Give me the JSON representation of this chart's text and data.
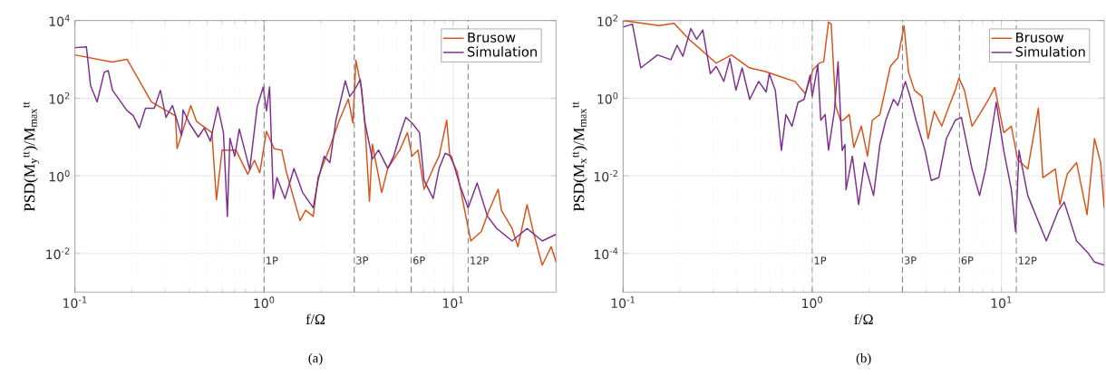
{
  "chart_data": [
    {
      "type": "line",
      "xlabel": "f/Ω",
      "ylabel": "PSD(M$_{y}$$^{tt}$)/M$_{max}$$^{tt}$",
      "annotations": [
        "(a)"
      ],
      "log": "xy",
      "grid": true,
      "legend": "top right",
      "xlim": [
        0.1,
        35
      ],
      "ylim": [
        0.001,
        10000
      ],
      "xticks": [
        {
          "value": 0.1,
          "label": "10$^{-1}$"
        },
        {
          "value": 1,
          "label": "10$^{0}$"
        },
        {
          "value": 10,
          "label": "10$^{1}$"
        }
      ],
      "yticks": [
        {
          "value": 0.01,
          "label": "10$^{-2}$"
        },
        {
          "value": 1,
          "label": "10$^{0}$"
        },
        {
          "value": 100,
          "label": "10$^{2}$"
        },
        {
          "value": 10000,
          "label": "10$^{4}$"
        }
      ],
      "ref_lines": [
        {
          "axis": "x",
          "value": 1,
          "label": "1P",
          "color": "#808080",
          "line_style": "dashed"
        },
        {
          "axis": "x",
          "value": 3,
          "label": "3P",
          "color": "#808080",
          "line_style": "dashed"
        },
        {
          "axis": "x",
          "value": 6,
          "label": "6P",
          "color": "#808080",
          "line_style": "dashed"
        },
        {
          "axis": "x",
          "value": 12,
          "label": "12P",
          "color": "#808080",
          "line_style": "dashed"
        }
      ],
      "series": [
        {
          "name": "Brusow",
          "color": "#d95319",
          "x": [
            0.1,
            0.157,
            0.189,
            0.254,
            0.34,
            0.347,
            0.41,
            0.44,
            0.53,
            0.56,
            0.6,
            0.71,
            0.82,
            0.89,
            0.95,
            1.03,
            1.13,
            1.24,
            1.31,
            1.55,
            1.66,
            1.82,
            1.93,
            2.23,
            2.5,
            2.79,
            2.95,
            3.06,
            3.29,
            3.42,
            3.61,
            3.74,
            4.19,
            4.51,
            5.22,
            5.73,
            6.06,
            6.52,
            7.02,
            7.84,
            8.43,
            9.25,
            9.6,
            10.5,
            11.5,
            12.4,
            14.1,
            15.5,
            17.3,
            18,
            20.5,
            22,
            24.6,
            26.5,
            29.6,
            33,
            35
          ],
          "values": [
            1300,
            850,
            1000,
            80,
            35,
            5,
            65,
            25,
            13,
            0.24,
            4.6,
            4.6,
            1.1,
            2.5,
            1.2,
            14,
            5,
            4.6,
            1.3,
            0.07,
            0.13,
            0.09,
            0.9,
            5.5,
            27,
            95,
            23,
            950,
            160,
            19,
            0.22,
            6.5,
            0.37,
            1.55,
            4.6,
            13,
            3.2,
            4.6,
            0.45,
            1.55,
            3.2,
            27,
            3.2,
            1.3,
            0.13,
            0.021,
            0.037,
            0.13,
            0.45,
            0.13,
            0.044,
            0.015,
            0.18,
            0.037,
            0.005,
            0.015,
            0.006
          ]
        },
        {
          "name": "Simulation",
          "color": "#7e2f8e",
          "x": [
            0.1,
            0.115,
            0.121,
            0.131,
            0.143,
            0.15,
            0.158,
            0.189,
            0.203,
            0.219,
            0.236,
            0.263,
            0.283,
            0.303,
            0.328,
            0.366,
            0.373,
            0.402,
            0.449,
            0.483,
            0.52,
            0.57,
            0.61,
            0.64,
            0.66,
            0.7,
            0.74,
            0.79,
            0.84,
            0.92,
            0.99,
            1.03,
            1.07,
            1.12,
            1.17,
            1.29,
            1.44,
            1.6,
            1.82,
            1.93,
            2.08,
            2.23,
            2.4,
            2.69,
            2.84,
            3.0,
            3.23,
            3.42,
            3.74,
            4.03,
            4.51,
            4.85,
            5.22,
            5.62,
            6.06,
            6.64,
            7.02,
            7.84,
            8.43,
            9.07,
            9.77,
            10.9,
            12,
            13.4,
            15.2,
            17,
            20.5,
            24.6,
            29.6,
            35
          ],
          "values": [
            2000,
            2100,
            210,
            80,
            470,
            510,
            160,
            47,
            36,
            17,
            55,
            55,
            160,
            32,
            65,
            11,
            50,
            23,
            10,
            17,
            7.8,
            60,
            13,
            0.09,
            9.3,
            3.2,
            16,
            4.6,
            1.45,
            60,
            195,
            47,
            195,
            0.26,
            0.9,
            0.26,
            1.55,
            0.37,
            0.15,
            0.76,
            3.2,
            2.2,
            27,
            280,
            110,
            160,
            300,
            23,
            2.7,
            4.6,
            1.55,
            3.2,
            11,
            32,
            23,
            13,
            0.76,
            0.26,
            1.55,
            3.8,
            3.2,
            0.54,
            0.15,
            0.65,
            0.09,
            0.044,
            0.021,
            0.044,
            0.021,
            0.031
          ]
        }
      ]
    },
    {
      "type": "line",
      "xlabel": "f/Ω",
      "ylabel": "PSD(M$_{x}$$^{tt}$)/M$_{max}$$^{tt}$",
      "annotations": [
        "(b)"
      ],
      "log": "xy",
      "grid": true,
      "legend": "top right",
      "xlim": [
        0.1,
        35
      ],
      "ylim": [
        1e-05,
        100
      ],
      "xticks": [
        {
          "value": 0.1,
          "label": "10$^{-1}$"
        },
        {
          "value": 1,
          "label": "10$^{0}$"
        },
        {
          "value": 10,
          "label": "10$^{1}$"
        }
      ],
      "yticks": [
        {
          "value": 0.0001,
          "label": "10$^{-4}$"
        },
        {
          "value": 0.01,
          "label": "10$^{-2}$"
        },
        {
          "value": 1,
          "label": "10$^{0}$"
        },
        {
          "value": 100,
          "label": "10$^{2}$"
        }
      ],
      "ref_lines": [
        {
          "axis": "x",
          "value": 1,
          "label": "1P",
          "color": "#808080",
          "line_style": "dashed"
        },
        {
          "axis": "x",
          "value": 3,
          "label": "3P",
          "color": "#808080",
          "line_style": "dashed"
        },
        {
          "axis": "x",
          "value": 6,
          "label": "6P",
          "color": "#808080",
          "line_style": "dashed"
        },
        {
          "axis": "x",
          "value": 12,
          "label": "12P",
          "color": "#808080",
          "line_style": "dashed"
        }
      ],
      "series": [
        {
          "name": "Brusow",
          "color": "#d95319",
          "x": [
            0.1,
            0.155,
            0.186,
            0.223,
            0.311,
            0.374,
            0.467,
            0.561,
            0.687,
            0.81,
            0.92,
            1.01,
            1.09,
            1.15,
            1.22,
            1.26,
            1.33,
            1.41,
            1.46,
            1.57,
            1.66,
            1.82,
            1.96,
            2.08,
            2.28,
            2.59,
            2.84,
            3.06,
            3.23,
            3.47,
            3.81,
            4.1,
            4.42,
            4.84,
            5.31,
            5.71,
            5.97,
            6.38,
            7.0,
            7.67,
            8.57,
            9.23,
            10.3,
            11.3,
            12.2,
            13.8,
            15.7,
            16.6,
            19.3,
            20.4,
            22.3,
            25,
            28.4,
            31.1,
            33.5,
            35
          ],
          "values": [
            100,
            74,
            85,
            33,
            8,
            13,
            6,
            4.9,
            3.5,
            2.7,
            1.3,
            5.5,
            8,
            8.7,
            92,
            81,
            0.65,
            0.27,
            0.27,
            0.38,
            0.054,
            0.19,
            0.032,
            0.27,
            0.38,
            6.6,
            11,
            74,
            4.7,
            1.6,
            1.1,
            0.091,
            0.46,
            0.19,
            0.65,
            1.6,
            3.3,
            1.6,
            0.19,
            0.38,
            0.93,
            1.9,
            0.13,
            0.19,
            0.026,
            0.015,
            0.55,
            0.009,
            0.015,
            0.0018,
            0.011,
            0.022,
            0.001,
            0.091,
            0.022,
            0.0015
          ]
        },
        {
          "name": "Simulation",
          "color": "#7e2f8e",
          "x": [
            0.1,
            0.112,
            0.124,
            0.152,
            0.179,
            0.193,
            0.207,
            0.228,
            0.245,
            0.264,
            0.289,
            0.311,
            0.341,
            0.367,
            0.395,
            0.426,
            0.467,
            0.521,
            0.571,
            0.593,
            0.638,
            0.687,
            0.726,
            0.782,
            0.841,
            0.906,
            0.975,
            1.0,
            1.07,
            1.11,
            1.17,
            1.22,
            1.31,
            1.37,
            1.44,
            1.49,
            1.51,
            1.63,
            1.76,
            1.89,
            2.11,
            2.28,
            2.45,
            2.69,
            2.84,
            3.11,
            3.29,
            3.54,
            3.95,
            4.26,
            4.67,
            5.12,
            5.71,
            6.15,
            7.0,
            7.67,
            8.26,
            9.4,
            10.3,
            11.3,
            11.9,
            12.4,
            13.8,
            17.3,
            20,
            21.5,
            25,
            28.9,
            31.1,
            35
          ],
          "values": [
            68,
            81,
            6,
            13,
            9.8,
            23,
            12,
            62,
            33,
            57,
            4.3,
            6.6,
            2.7,
            10.5,
            1.6,
            6,
            0.93,
            2.7,
            1.45,
            4.3,
            1.6,
            0.045,
            0.38,
            0.19,
            0.78,
            0.93,
            3.9,
            1.1,
            7.2,
            0.27,
            0.38,
            0.046,
            0.46,
            8.7,
            0.045,
            0.064,
            0.0044,
            0.032,
            0.0018,
            0.022,
            0.0031,
            0.064,
            0.27,
            0.93,
            0.65,
            2.7,
            1.1,
            0.27,
            0.045,
            0.0076,
            0.009,
            0.091,
            0.27,
            0.32,
            0.015,
            0.0031,
            0.015,
            0.78,
            0.045,
            0.0044,
            0.00036,
            0.045,
            0.0031,
            0.00021,
            0.00126,
            0.0021,
            0.00021,
            0.0001,
            6e-05,
            5e-05
          ]
        }
      ]
    }
  ]
}
